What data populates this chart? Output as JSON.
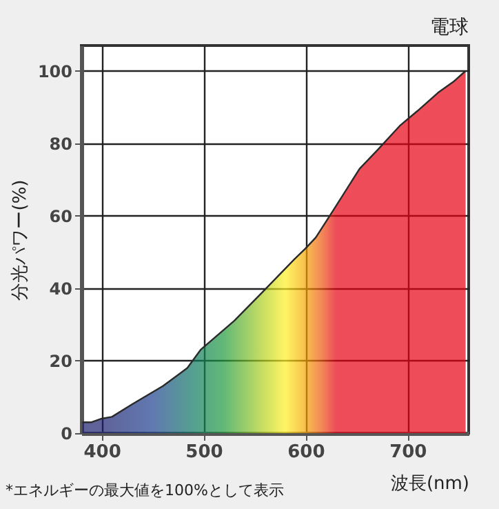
{
  "chart_data": {
    "type": "area",
    "title": "電球",
    "ylabel": "分光パワー(%)",
    "xlabel": "波長(nm)",
    "annotations": [
      "*エネルギーの最大値を100%として表示"
    ],
    "x": [
      381,
      390,
      400,
      410,
      430,
      460,
      484,
      497,
      530,
      558,
      589,
      600,
      610,
      626,
      653,
      670,
      693,
      710,
      730,
      745,
      757
    ],
    "series": [
      {
        "color": "#e60012",
        "values": [
          3,
          3,
          4,
          4.5,
          8,
          13,
          18,
          23,
          31,
          39,
          48,
          51,
          54,
          61,
          73,
          78,
          85,
          89,
          94,
          97,
          100
        ]
      }
    ],
    "xlim": [
      380,
      760
    ],
    "xticks": [
      400,
      500,
      600,
      700
    ],
    "ylim": [
      0,
      107
    ],
    "yticks": [
      0,
      20,
      40,
      60,
      80,
      100
    ],
    "grid": true,
    "marker": "none",
    "line_style": "solid"
  }
}
